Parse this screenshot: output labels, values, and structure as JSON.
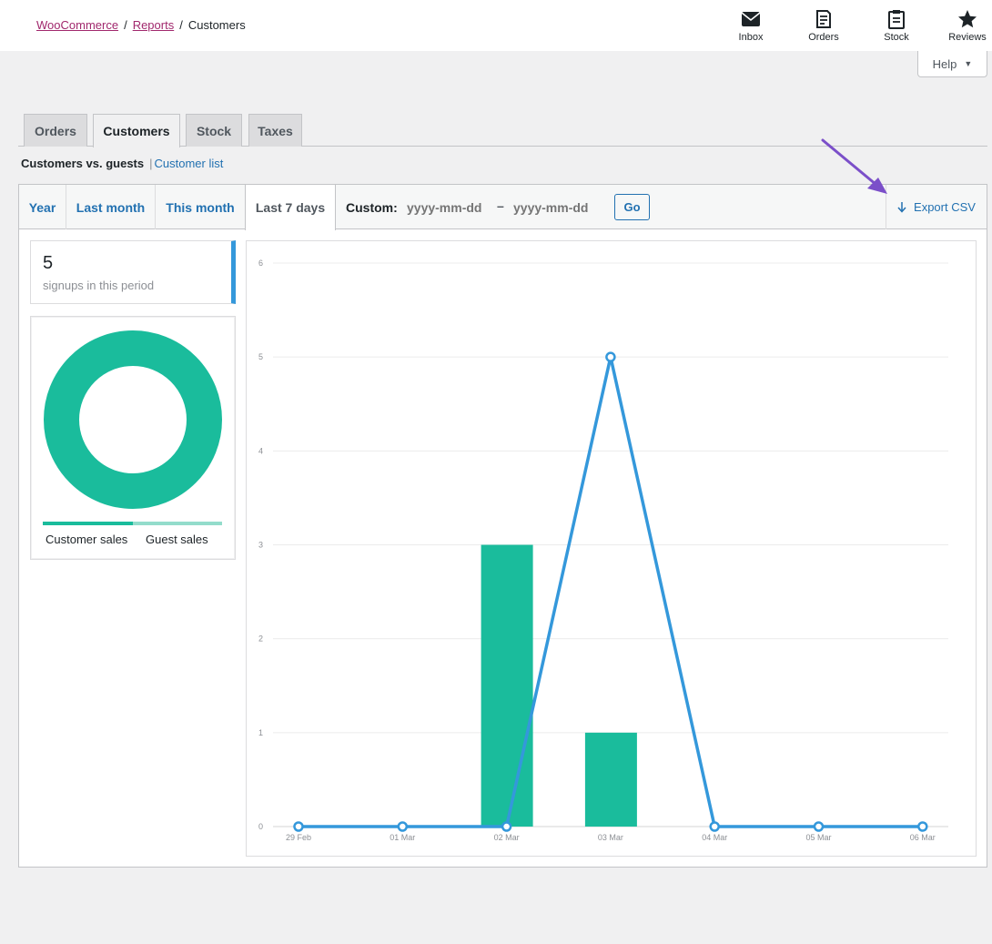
{
  "breadcrumb": {
    "woocommerce": "WooCommerce",
    "reports": "Reports",
    "current": "Customers",
    "separator": "/"
  },
  "activity_bar": [
    {
      "label": "Inbox",
      "icon": "inbox-icon"
    },
    {
      "label": "Orders",
      "icon": "orders-icon"
    },
    {
      "label": "Stock",
      "icon": "stock-icon"
    },
    {
      "label": "Reviews",
      "icon": "star-icon"
    }
  ],
  "help": {
    "label": "Help"
  },
  "tabs": [
    {
      "label": "Orders"
    },
    {
      "label": "Customers",
      "active": true
    },
    {
      "label": "Stock"
    },
    {
      "label": "Taxes"
    }
  ],
  "subnav": {
    "current": "Customers vs. guests",
    "separator": "|",
    "link": "Customer list"
  },
  "range": {
    "items": [
      {
        "label": "Year"
      },
      {
        "label": "Last month"
      },
      {
        "label": "This month"
      },
      {
        "label": "Last 7 days",
        "active": true
      }
    ],
    "custom_label": "Custom:",
    "start_placeholder": "yyyy-mm-dd",
    "dash": "–",
    "end_placeholder": "yyyy-mm-dd",
    "go_label": "Go",
    "export_label": "Export CSV"
  },
  "summary": {
    "count": "5",
    "label": "signups in this period"
  },
  "pie": {
    "legend": [
      {
        "label": "Customer sales",
        "color": "#1abc9c"
      },
      {
        "label": "Guest sales",
        "color": "#93dccb"
      }
    ]
  },
  "colors": {
    "accent": "#2271b1",
    "bar": "#1abc9c",
    "line": "#3498db",
    "annotation_arrow": "#7b4fc9"
  },
  "chart_data": {
    "type": "bar",
    "categories": [
      "29 Feb",
      "01 Mar",
      "02 Mar",
      "03 Mar",
      "04 Mar",
      "05 Mar",
      "06 Mar"
    ],
    "series": [
      {
        "type": "bar",
        "values": [
          0,
          0,
          3,
          1,
          0,
          0,
          0
        ]
      },
      {
        "type": "line",
        "values": [
          0,
          0,
          0,
          5,
          0,
          0,
          0
        ]
      }
    ],
    "yticks": [
      0,
      1,
      2,
      3,
      4,
      5,
      6
    ],
    "ylim": [
      0,
      6
    ],
    "grid": true
  }
}
